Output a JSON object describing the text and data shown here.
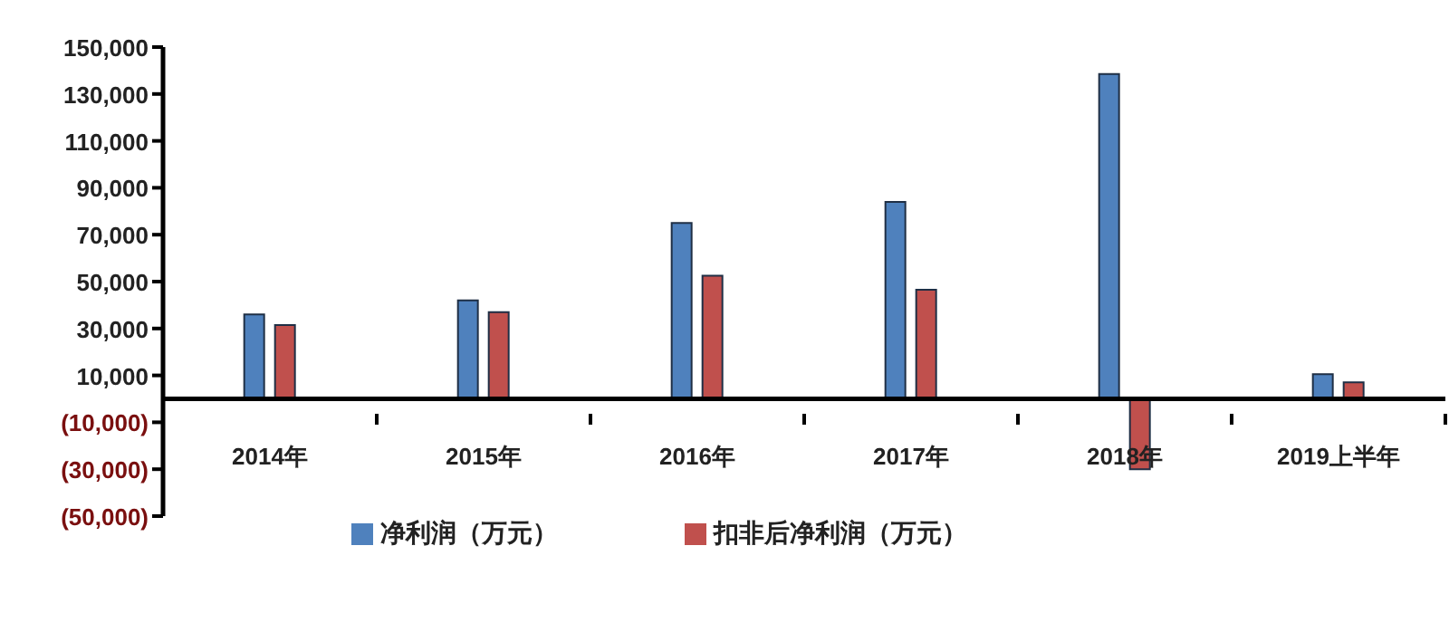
{
  "chart_data": {
    "type": "bar",
    "categories": [
      "2014年",
      "2015年",
      "2016年",
      "2017年",
      "2018年",
      "2019上半年"
    ],
    "series": [
      {
        "name": "净利润（万元）",
        "color": "#4f81bd",
        "values": [
          36000,
          42000,
          75000,
          84000,
          138500,
          10500
        ]
      },
      {
        "name": "扣非后净利润（万元）",
        "color": "#c0504d",
        "values": [
          31500,
          37000,
          52500,
          46500,
          -30000,
          7000
        ]
      }
    ],
    "ylim": [
      -50000,
      150000
    ],
    "yticks": [
      {
        "value": -50000,
        "label": "(50,000)"
      },
      {
        "value": -30000,
        "label": "(30,000)"
      },
      {
        "value": -10000,
        "label": "(10,000)"
      },
      {
        "value": 10000,
        "label": "10,000"
      },
      {
        "value": 30000,
        "label": "30,000"
      },
      {
        "value": 50000,
        "label": "50,000"
      },
      {
        "value": 70000,
        "label": "70,000"
      },
      {
        "value": 90000,
        "label": "90,000"
      },
      {
        "value": 110000,
        "label": "110,000"
      },
      {
        "value": 130000,
        "label": "130,000"
      },
      {
        "value": 150000,
        "label": "150,000"
      }
    ],
    "grid": false,
    "legend": "bottom"
  }
}
